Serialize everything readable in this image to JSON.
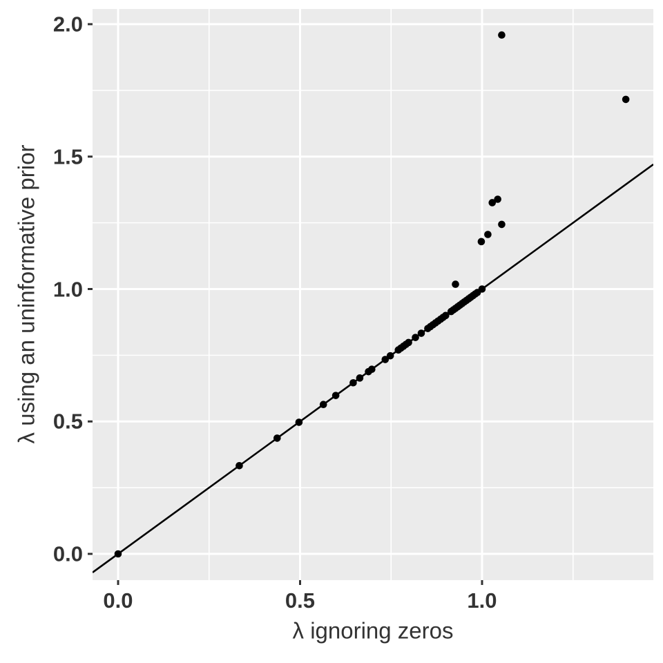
{
  "figure": {
    "x_axis_title": "λ ignoring zeros",
    "y_axis_title": "λ using an uninformative prior"
  },
  "colors": {
    "panel_background": "#EBEBEB",
    "grid": "#FFFFFF",
    "axis_text": "#333333",
    "points": "#000000",
    "line": "#000000"
  },
  "chart_data": {
    "type": "scatter",
    "title": "",
    "xlabel": "λ ignoring zeros",
    "ylabel": "λ using an uninformative prior",
    "xlim": [
      -0.0702,
      1.4706
    ],
    "ylim": [
      -0.0991,
      2.0574
    ],
    "grid": true,
    "legend_position": "none",
    "x_ticks": {
      "values": [
        0.0,
        0.5,
        1.0
      ],
      "labels": [
        "0.0",
        "0.5",
        "1.0"
      ]
    },
    "y_ticks": {
      "values": [
        0.0,
        0.5,
        1.0,
        1.5,
        2.0
      ],
      "labels": [
        "0.0",
        "0.5",
        "1.0",
        "1.5",
        "2.0"
      ]
    },
    "x_minor_gridlines": [
      0.25,
      0.75,
      1.25
    ],
    "y_minor_gridlines": [
      0.25,
      0.75,
      1.25,
      1.75
    ],
    "identity_line": {
      "slope": 1,
      "intercept": 0
    },
    "points": [
      [
        0.0,
        0.0
      ],
      [
        0.333,
        0.333
      ],
      [
        0.437,
        0.437
      ],
      [
        0.497,
        0.497
      ],
      [
        0.564,
        0.564
      ],
      [
        0.598,
        0.598
      ],
      [
        0.646,
        0.646
      ],
      [
        0.664,
        0.664
      ],
      [
        0.688,
        0.688
      ],
      [
        0.697,
        0.697
      ],
      [
        0.734,
        0.734
      ],
      [
        0.748,
        0.748
      ],
      [
        0.77,
        0.77
      ],
      [
        0.777,
        0.777
      ],
      [
        0.784,
        0.784
      ],
      [
        0.791,
        0.791
      ],
      [
        0.798,
        0.798
      ],
      [
        0.817,
        0.817
      ],
      [
        0.833,
        0.833
      ],
      [
        0.851,
        0.851
      ],
      [
        0.858,
        0.858
      ],
      [
        0.865,
        0.865
      ],
      [
        0.872,
        0.872
      ],
      [
        0.879,
        0.879
      ],
      [
        0.886,
        0.886
      ],
      [
        0.893,
        0.893
      ],
      [
        0.9,
        0.9
      ],
      [
        0.915,
        0.915
      ],
      [
        0.921,
        0.921
      ],
      [
        0.927,
        0.927
      ],
      [
        0.933,
        0.933
      ],
      [
        0.939,
        0.939
      ],
      [
        0.945,
        0.945
      ],
      [
        0.951,
        0.951
      ],
      [
        0.957,
        0.957
      ],
      [
        0.963,
        0.963
      ],
      [
        0.969,
        0.969
      ],
      [
        0.975,
        0.975
      ],
      [
        0.981,
        0.981
      ],
      [
        0.987,
        0.987
      ],
      [
        1.0,
        1.0
      ],
      [
        0.927,
        1.018
      ],
      [
        0.998,
        1.179
      ],
      [
        1.016,
        1.206
      ],
      [
        1.054,
        1.244
      ],
      [
        1.028,
        1.326
      ],
      [
        1.043,
        1.339
      ],
      [
        1.054,
        1.959
      ],
      [
        1.395,
        1.716
      ]
    ]
  }
}
